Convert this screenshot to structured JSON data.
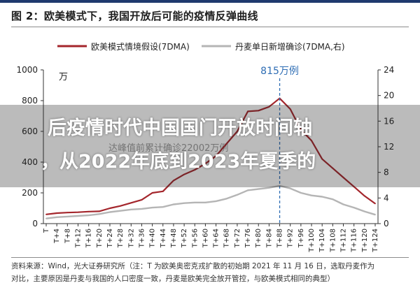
{
  "figure": {
    "title": "图 2：欧美模式下，我国开放后可能的疫情反弹曲线",
    "source_line1": "资料来源：Wind，光大证券研究所（注：T 为欧美奥密克戎扩散的初始期 2021 年 11 月 16 日，选取丹麦作为",
    "source_line2": "对比，主要原因是丹麦与我国的人口密度一致，丹麦是欧美完全放开管控，与欧美模式相同的典型）"
  },
  "overlay": {
    "line1": "后疫情时代中国国门开放时间轴",
    "line2": "，从2022年底到2023年夏季的"
  },
  "colors": {
    "series_red": "#a4262c",
    "series_gray": "#b5b5b5",
    "peak_marker": "#2e6db4",
    "axis": "#333333",
    "ghost_text": "#9a9a9a"
  },
  "chart_data": {
    "type": "line",
    "x": [
      "T",
      "T+4",
      "T+8",
      "T+12",
      "T+16",
      "T+20",
      "T+24",
      "T+28",
      "T+32",
      "T+36",
      "T+40",
      "T+44",
      "T+48",
      "T+52",
      "T+56",
      "T+60",
      "T+64",
      "T+68",
      "T+72",
      "T+76",
      "T+80",
      "T+84",
      "T+88",
      "T+92",
      "T+96",
      "T+100",
      "T+104",
      "T+108",
      "T+112",
      "T+116",
      "T+120",
      "T+124"
    ],
    "series": [
      {
        "name": "欧美模式情境假设(7DMA)",
        "axis": "left",
        "color": "#a4262c",
        "values": [
          60,
          68,
          72,
          74,
          78,
          80,
          100,
          115,
          135,
          155,
          200,
          210,
          280,
          320,
          350,
          390,
          440,
          520,
          600,
          730,
          735,
          760,
          815,
          745,
          610,
          540,
          420,
          360,
          300,
          240,
          180,
          130
        ]
      },
      {
        "name": "丹麦单日新增确诊(7DMA,右)",
        "axis": "right",
        "color": "#b5b5b5",
        "values": [
          0.8,
          1.0,
          1.1,
          1.2,
          1.3,
          1.5,
          1.8,
          2.0,
          2.2,
          2.3,
          2.5,
          2.6,
          3.0,
          3.2,
          3.3,
          3.3,
          3.5,
          3.9,
          4.5,
          5.2,
          5.4,
          5.6,
          5.9,
          5.5,
          4.8,
          4.4,
          4.2,
          3.8,
          3.0,
          2.5,
          1.9,
          1.4
        ]
      }
    ],
    "y_left": {
      "label": "万",
      "ylim": [
        0,
        1000
      ],
      "ticks": [
        0,
        200,
        400,
        600,
        800,
        1000
      ]
    },
    "y_right": {
      "ylim": [
        0,
        24
      ],
      "ticks": [
        0,
        4,
        8,
        12,
        16,
        20,
        24
      ]
    },
    "annotations": [
      {
        "text": "815万例",
        "x": "T+88",
        "kind": "vertical-dashed-line"
      },
      {
        "text": "达峰值前累计确诊22002万例",
        "kind": "faded-label"
      }
    ],
    "legend_position": "top",
    "grid": false
  }
}
